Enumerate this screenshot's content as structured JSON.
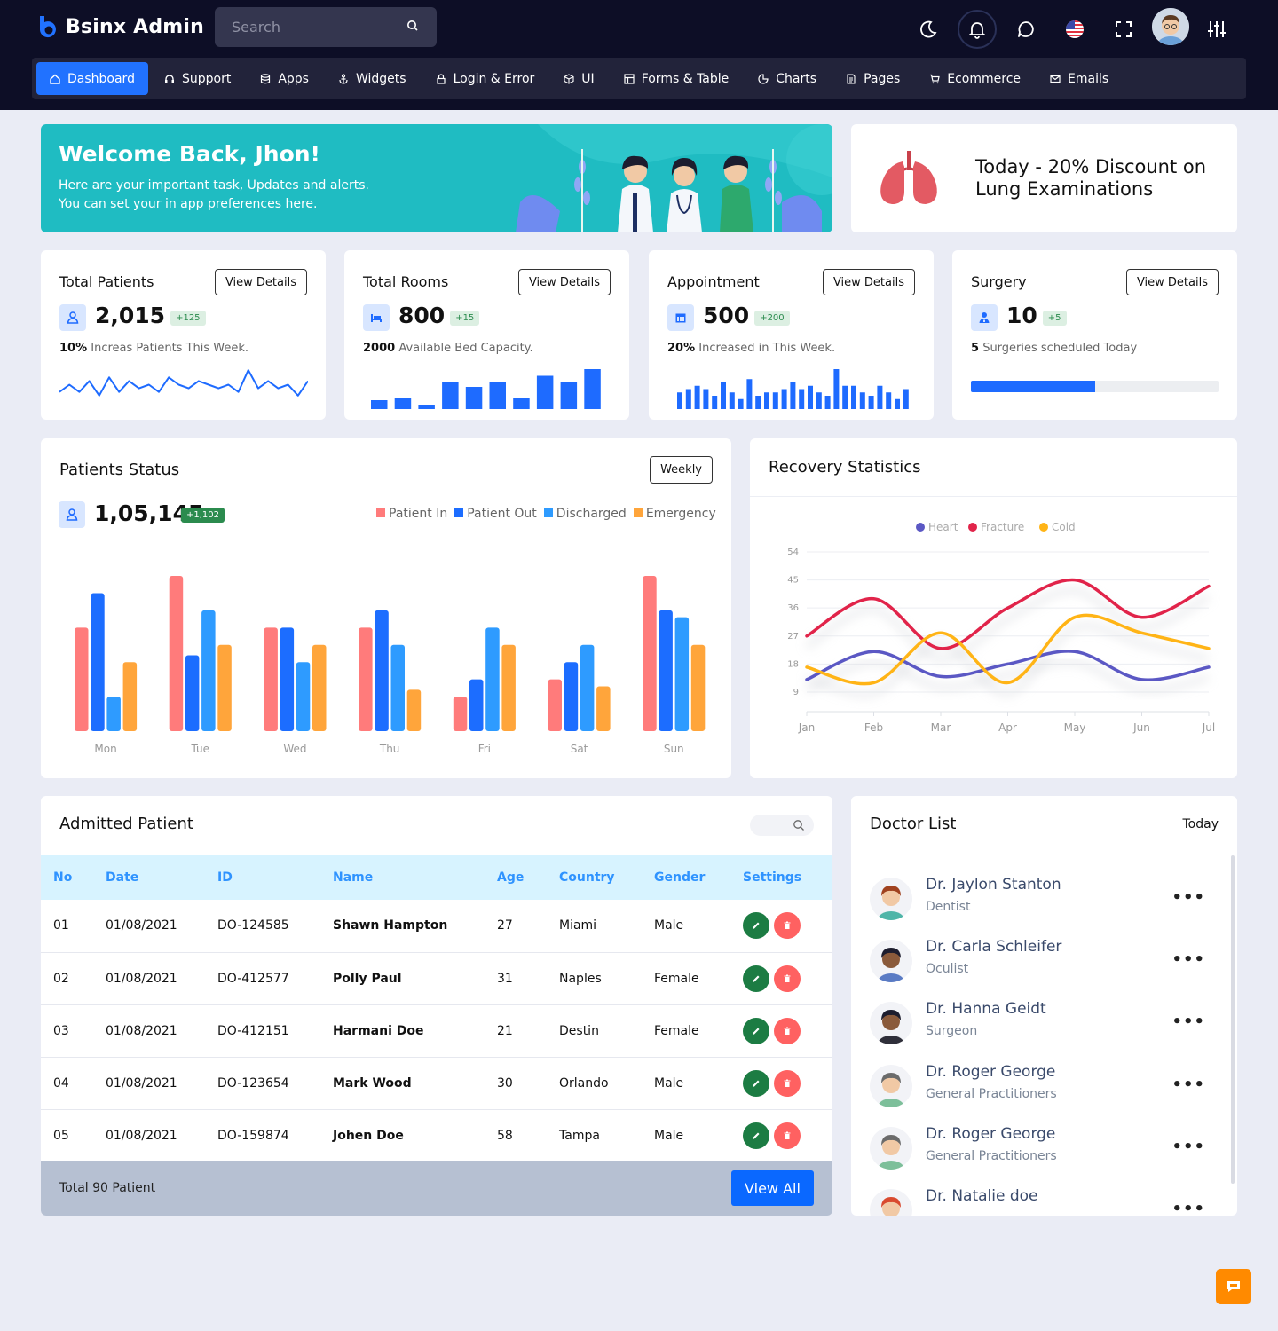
{
  "app": {
    "brand": "Bsinx Admin",
    "search_placeholder": "Search",
    "accent": "#2172ff"
  },
  "nav": [
    {
      "label": "Dashboard",
      "icon": "home-icon",
      "active": true
    },
    {
      "label": "Support",
      "icon": "headset-icon"
    },
    {
      "label": "Apps",
      "icon": "database-icon"
    },
    {
      "label": "Widgets",
      "icon": "anchor-icon"
    },
    {
      "label": "Login & Error",
      "icon": "lock-icon"
    },
    {
      "label": "UI",
      "icon": "cube-icon"
    },
    {
      "label": "Forms & Table",
      "icon": "table-icon"
    },
    {
      "label": "Charts",
      "icon": "pie-chart-icon"
    },
    {
      "label": "Pages",
      "icon": "file-icon"
    },
    {
      "label": "Ecommerce",
      "icon": "cart-icon"
    },
    {
      "label": "Emails",
      "icon": "mail-icon"
    }
  ],
  "welcome": {
    "title": "Welcome Back, Jhon!",
    "line1": "Here are your important task, Updates and alerts.",
    "line2": "You can set your in app preferences here."
  },
  "promo": {
    "text": "Today - 20% Discount on Lung Examinations"
  },
  "stats": [
    {
      "title": "Total Patients",
      "button": "View Details",
      "value": "2,015",
      "badge": "+125",
      "sub_bold": "10%",
      "sub": "Increas Patients This Week.",
      "icon": "user-icon"
    },
    {
      "title": "Total Rooms",
      "button": "View Details",
      "value": "800",
      "badge": "+15",
      "sub_bold": "2000",
      "sub": "Available Bed Capacity.",
      "icon": "bed-icon"
    },
    {
      "title": "Appointment",
      "button": "View Details",
      "value": "500",
      "badge": "+200",
      "sub_bold": "20%",
      "sub": "Increased in This Week.",
      "icon": "calendar-icon"
    },
    {
      "title": "Surgery",
      "button": "View Details",
      "value": "10",
      "badge": "+5",
      "sub_bold": "5",
      "sub": "Surgeries scheduled Today",
      "icon": "doctor-icon",
      "progress": 0.5
    }
  ],
  "patients_status": {
    "title": "Patients Status",
    "filter": "Weekly",
    "total": "1,05,145",
    "badge": "+1,102"
  },
  "recovery": {
    "title": "Recovery Statistics"
  },
  "chart_data": [
    {
      "type": "line",
      "id": "total-patients-spark",
      "series": [
        {
          "values": [
            3,
            5,
            3,
            6,
            2,
            7,
            3,
            6,
            4,
            5,
            3,
            7,
            5,
            4,
            6,
            5,
            4,
            5,
            3,
            9,
            4,
            6,
            4,
            5,
            2,
            6
          ]
        }
      ],
      "color": "#1e6bff"
    },
    {
      "type": "bar",
      "id": "rooms-spark",
      "values": [
        2,
        2.5,
        1,
        6,
        5,
        6,
        2.5,
        7.5,
        6,
        9
      ],
      "color": "#1e6bff"
    },
    {
      "type": "bar",
      "id": "appointment-spark",
      "values": [
        5,
        6,
        7,
        6,
        4,
        8,
        5,
        3,
        9,
        4,
        5,
        5,
        6,
        8,
        6,
        7,
        5,
        4,
        12,
        7,
        7,
        5,
        4,
        7,
        5,
        3,
        6
      ],
      "color": "#1e6bff"
    },
    {
      "type": "bar",
      "id": "patients-status",
      "categories": [
        "Mon",
        "Tue",
        "Wed",
        "Thu",
        "Fri",
        "Sat",
        "Sun"
      ],
      "series": [
        {
          "name": "Patient In",
          "color": "#ff7b7b",
          "values": [
            30,
            45,
            30,
            30,
            10,
            15,
            45
          ]
        },
        {
          "name": "Patient Out",
          "color": "#1c6dff",
          "values": [
            40,
            22,
            30,
            35,
            15,
            20,
            35
          ]
        },
        {
          "name": "Discharged",
          "color": "#2e9bff",
          "values": [
            10,
            35,
            20,
            25,
            30,
            25,
            33
          ]
        },
        {
          "name": "Emergency",
          "color": "#ffa53b",
          "values": [
            20,
            25,
            25,
            12,
            25,
            13,
            25
          ]
        }
      ],
      "ylim": [
        0,
        45
      ]
    },
    {
      "type": "line",
      "id": "recovery-statistics",
      "categories": [
        "Jan",
        "Feb",
        "Mar",
        "Apr",
        "May",
        "Jun",
        "Jul"
      ],
      "yticks": [
        9,
        18,
        27,
        36,
        45,
        54
      ],
      "ylim": [
        5,
        54
      ],
      "series": [
        {
          "name": "Heart",
          "color": "#5b58c4",
          "values": [
            13,
            22,
            14,
            18,
            22,
            13,
            17
          ]
        },
        {
          "name": "Fracture",
          "color": "#e1244a",
          "values": [
            27,
            39,
            23,
            36,
            45,
            33,
            43
          ]
        },
        {
          "name": "Cold",
          "color": "#ffb416",
          "values": [
            17,
            12,
            28,
            12,
            33,
            28,
            23
          ]
        }
      ]
    }
  ],
  "admitted": {
    "title": "Admitted Patient",
    "columns": [
      "No",
      "Date",
      "ID",
      "Name",
      "Age",
      "Country",
      "Gender",
      "Settings"
    ],
    "rows": [
      {
        "no": "01",
        "date": "01/08/2021",
        "id": "DO-124585",
        "name": "Shawn Hampton",
        "age": "27",
        "country": "Miami",
        "gender": "Male"
      },
      {
        "no": "02",
        "date": "01/08/2021",
        "id": "DO-412577",
        "name": "Polly Paul",
        "age": "31",
        "country": "Naples",
        "gender": "Female"
      },
      {
        "no": "03",
        "date": "01/08/2021",
        "id": "DO-412151",
        "name": "Harmani Doe",
        "age": "21",
        "country": "Destin",
        "gender": "Female"
      },
      {
        "no": "04",
        "date": "01/08/2021",
        "id": "DO-123654",
        "name": "Mark Wood",
        "age": "30",
        "country": "Orlando",
        "gender": "Male"
      },
      {
        "no": "05",
        "date": "01/08/2021",
        "id": "DO-159874",
        "name": "Johen Doe",
        "age": "58",
        "country": "Tampa",
        "gender": "Male"
      }
    ],
    "total": "Total 90 Patient",
    "view_all": "View All"
  },
  "doctors": {
    "title": "Doctor List",
    "period": "Today",
    "list": [
      {
        "name": "Dr. Jaylon Stanton",
        "role": "Dentist"
      },
      {
        "name": "Dr. Carla Schleifer",
        "role": "Oculist"
      },
      {
        "name": "Dr. Hanna Geidt",
        "role": "Surgeon"
      },
      {
        "name": "Dr. Roger George",
        "role": "General Practitioners"
      },
      {
        "name": "Dr. Roger George",
        "role": "General Practitioners"
      },
      {
        "name": "Dr. Natalie doe",
        "role": ""
      }
    ]
  }
}
